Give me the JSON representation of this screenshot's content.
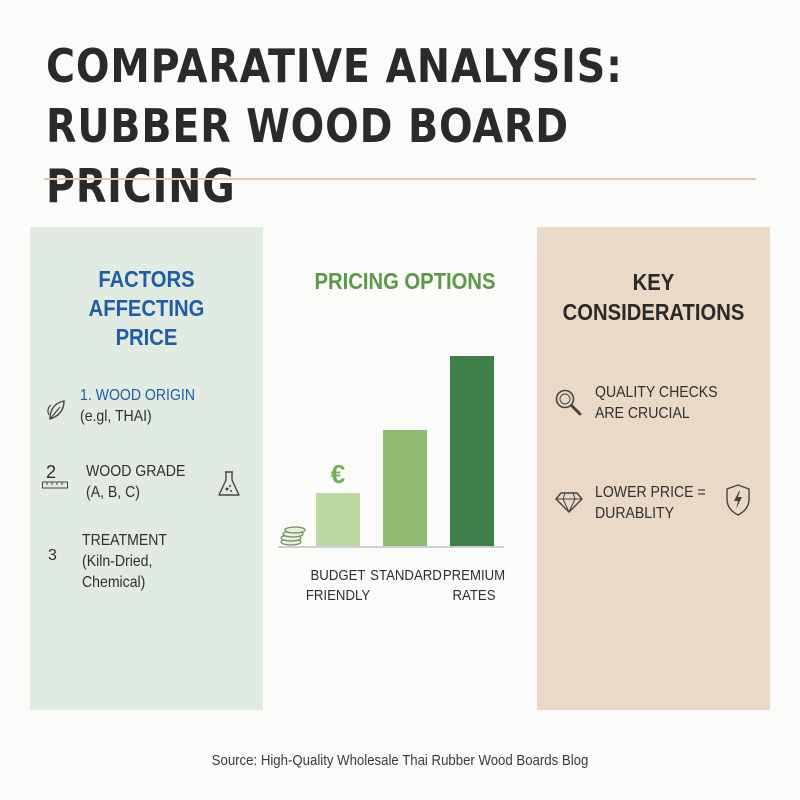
{
  "title": {
    "line1": "COMPARATIVE ANALYSIS:",
    "line2": "RUBBER WOOD BOARD PRICING"
  },
  "left_panel": {
    "heading": [
      "FACTORS",
      "AFFECTING",
      "PRICE"
    ],
    "items": [
      {
        "number": "1.",
        "label": "WOOD ORIGIN",
        "detail": "(e.gl, THAI)",
        "icon": "leaf-icon"
      },
      {
        "number": "2",
        "label": "WOOD GRADE",
        "detail": "(A, B, C)",
        "icon": "ruler-icon",
        "side_icon": "flask-icon"
      },
      {
        "number": "3",
        "label": "TREATMENT",
        "detail": "(Kiln-Dried,",
        "detail2": "Chemical)"
      }
    ]
  },
  "center_panel": {
    "heading": "PRICING OPTIONS",
    "currency_symbol": "€",
    "bars": [
      {
        "label_line1": "BUDGET",
        "label_line2": "FRIENDLY",
        "level": 0.28,
        "color": "#bcd9a3"
      },
      {
        "label_line1": "STANDARD",
        "label_line2": "",
        "level": 0.61,
        "color": "#8fbb73"
      },
      {
        "label_line1": "PREMIUM",
        "label_line2": "RATES",
        "level": 1.0,
        "color": "#3f7f4a"
      }
    ]
  },
  "right_panel": {
    "heading": [
      "KEY",
      "CONSIDERATIONS"
    ],
    "items": [
      {
        "line1": "QUALITY CHECKS",
        "line2": "ARE CRUCIAL",
        "icon": "magnifier-icon"
      },
      {
        "line1": "LOWER PRICE =",
        "line2": "DURABLITY",
        "icon": "diamond-icon",
        "side_icon": "shield-lightning-icon"
      }
    ]
  },
  "source": "Source: High-Quality Wholesale Thai Rubber Wood Boards Blog",
  "colors": {
    "left_bg": "#e2ebe1",
    "right_bg": "#ead9c7",
    "blue": "#1f5ea7",
    "green_heading": "#5a9a4a",
    "rule": "#dfc9b5"
  }
}
